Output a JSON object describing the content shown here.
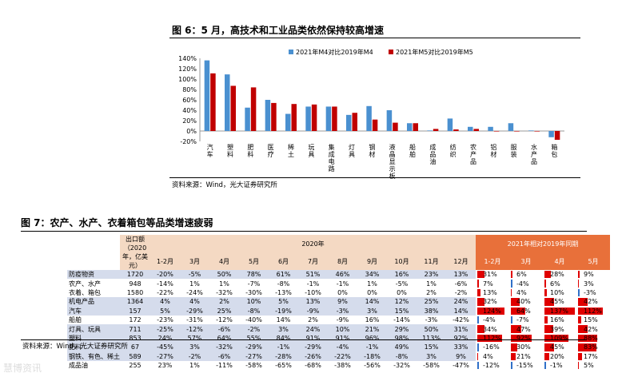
{
  "figure1": {
    "title": "图 6：5 月，高技术和工业品类依然保持较高增速",
    "source": "资料来源：Wind，光大证券研究所"
  },
  "chart_data": {
    "type": "bar",
    "categories": [
      "汽车",
      "塑料",
      "肥料",
      "医疗",
      "稀土",
      "玩具",
      "集成电路",
      "灯具",
      "钢材",
      "液晶显示板",
      "船舶",
      "成品油",
      "纺织",
      "农产品",
      "铝材",
      "服装",
      "水产品",
      "箱包"
    ],
    "category_labels": [
      "汽车",
      "塑料",
      "肥料",
      "医疗",
      "稀土",
      "玩具",
      "集成电路",
      "灯具",
      "钢材",
      "液晶显示板",
      "船舶",
      "成品油",
      "纺织",
      "农产品",
      "铝材",
      "服装",
      "水产品",
      "箱包"
    ],
    "series": [
      {
        "name": "2021年M4对比2019年M4",
        "color": "#4a90d0",
        "values": [
          136,
          109,
          45,
          60,
          33,
          47,
          47,
          31,
          48,
          40,
          15,
          1,
          24,
          8,
          8,
          15,
          1,
          -12
        ]
      },
      {
        "name": "2021年M5对比2019年M5",
        "color": "#c00000",
        "values": [
          111,
          87,
          84,
          54,
          52,
          51,
          47,
          35,
          22,
          16,
          15,
          4,
          3,
          4,
          0,
          0,
          0,
          -17
        ]
      }
    ],
    "ylim": [
      -20,
      140
    ],
    "yticks": [
      "-20%",
      "0%",
      "20%",
      "40%",
      "60%",
      "80%",
      "100%",
      "120%",
      "140%"
    ],
    "legend_position": "top"
  },
  "figure2": {
    "title": "图 7：农产、水产、衣着箱包等品类增速疲弱",
    "source": "资料来源：Wind，光大证券研究所",
    "header_amount": "出口额（2020年，亿美元）",
    "header_2020": "2020年",
    "header_cmp": "2021年相对2019年同期",
    "months_2020": [
      "1-2月",
      "3月",
      "4月",
      "5月",
      "6月",
      "7月",
      "8月",
      "9月",
      "10月",
      "11月",
      "12月"
    ],
    "months_cmp": [
      "1-2月",
      "3月",
      "4月",
      "5月"
    ],
    "rows": [
      {
        "name": "防疫物资",
        "amt": "1720",
        "m": [
          "-20%",
          "-5%",
          "50%",
          "78%",
          "61%",
          "51%",
          "46%",
          "34%",
          "16%",
          "23%",
          "13%"
        ],
        "c": [
          "31%",
          "6%",
          "28%",
          "9%"
        ],
        "cv": [
          31,
          6,
          28,
          9
        ],
        "shade": true
      },
      {
        "name": "农产、水产",
        "amt": "948",
        "m": [
          "-14%",
          "1%",
          "1%",
          "-7%",
          "-8%",
          "-1%",
          "-1%",
          "1%",
          "-5%",
          "1%",
          "-6%"
        ],
        "c": [
          "7%",
          "-4%",
          "6%",
          "3%"
        ],
        "cv": [
          7,
          -4,
          6,
          3
        ],
        "shade": false
      },
      {
        "name": "衣着、箱包",
        "amt": "1580",
        "m": [
          "-22%",
          "-24%",
          "-32%",
          "-30%",
          "-13%",
          "-10%",
          "0%",
          "0%",
          "0%",
          "2%",
          "-2%"
        ],
        "c": [
          "13%",
          "4%",
          "10%",
          "-3%"
        ],
        "cv": [
          13,
          4,
          10,
          -3
        ],
        "shade": false
      },
      {
        "name": "机电产品",
        "amt": "1364",
        "m": [
          "4%",
          "4%",
          "2%",
          "10%",
          "5%",
          "13%",
          "9%",
          "14%",
          "12%",
          "25%",
          "24%"
        ],
        "c": [
          "32%",
          "40%",
          "45%",
          "42%"
        ],
        "cv": [
          32,
          40,
          45,
          42
        ],
        "shade": true
      },
      {
        "name": "汽车",
        "amt": "157",
        "m": [
          "5%",
          "-29%",
          "25%",
          "-8%",
          "-19%",
          "-9%",
          "-3%",
          "3%",
          "15%",
          "38%",
          "14%"
        ],
        "c": [
          "124%",
          "64%",
          "137%",
          "112%"
        ],
        "cv": [
          124,
          64,
          137,
          112
        ],
        "shade": true
      },
      {
        "name": "船舶",
        "amt": "172",
        "m": [
          "-23%",
          "-31%",
          "-12%",
          "-40%",
          "14%",
          "2%",
          "-9%",
          "16%",
          "-14%",
          "-3%",
          "-42%"
        ],
        "c": [
          "-4%",
          "-7%",
          "16%",
          "15%"
        ],
        "cv": [
          -4,
          -7,
          16,
          15
        ],
        "shade": false
      },
      {
        "name": "灯具、玩具",
        "amt": "711",
        "m": [
          "-25%",
          "-12%",
          "-6%",
          "-2%",
          "3%",
          "24%",
          "10%",
          "21%",
          "29%",
          "50%",
          "31%"
        ],
        "c": [
          "34%",
          "47%",
          "39%",
          "42%"
        ],
        "cv": [
          34,
          47,
          39,
          42
        ],
        "shade": true
      },
      {
        "name": "塑料",
        "amt": "853",
        "m": [
          "24%",
          "57%",
          "64%",
          "55%",
          "84%",
          "91%",
          "91%",
          "96%",
          "98%",
          "113%",
          "92%"
        ],
        "c": [
          "112%",
          "92%",
          "109%",
          "88%"
        ],
        "cv": [
          112,
          92,
          109,
          88
        ],
        "shade": true
      },
      {
        "name": "肥料",
        "amt": "67",
        "m": [
          "-45%",
          "3%",
          "-32%",
          "-29%",
          "-1%",
          "-29%",
          "-4%",
          "-1%",
          "49%",
          "15%",
          "33%"
        ],
        "c": [
          "-16%",
          "30%",
          "45%",
          "83%"
        ],
        "cv": [
          -16,
          30,
          45,
          83
        ],
        "shade": true
      },
      {
        "name": "钢铁、有色、稀土",
        "amt": "589",
        "m": [
          "-27%",
          "-2%",
          "-6%",
          "-27%",
          "-28%",
          "-26%",
          "-22%",
          "-18%",
          "-8%",
          "3%",
          "9%"
        ],
        "c": [
          "4%",
          "21%",
          "20%",
          "17%"
        ],
        "cv": [
          4,
          21,
          20,
          17
        ],
        "shade": true
      },
      {
        "name": "成品油",
        "amt": "255",
        "m": [
          "23%",
          "1%",
          "-11%",
          "-58%",
          "-65%",
          "-68%",
          "-38%",
          "-56%",
          "-32%",
          "-58%",
          "-47%"
        ],
        "c": [
          "-12%",
          "-15%",
          "-1%",
          "5%"
        ],
        "cv": [
          -12,
          -15,
          -1,
          5
        ],
        "shade": false
      }
    ]
  },
  "watermark": "慧博资讯"
}
